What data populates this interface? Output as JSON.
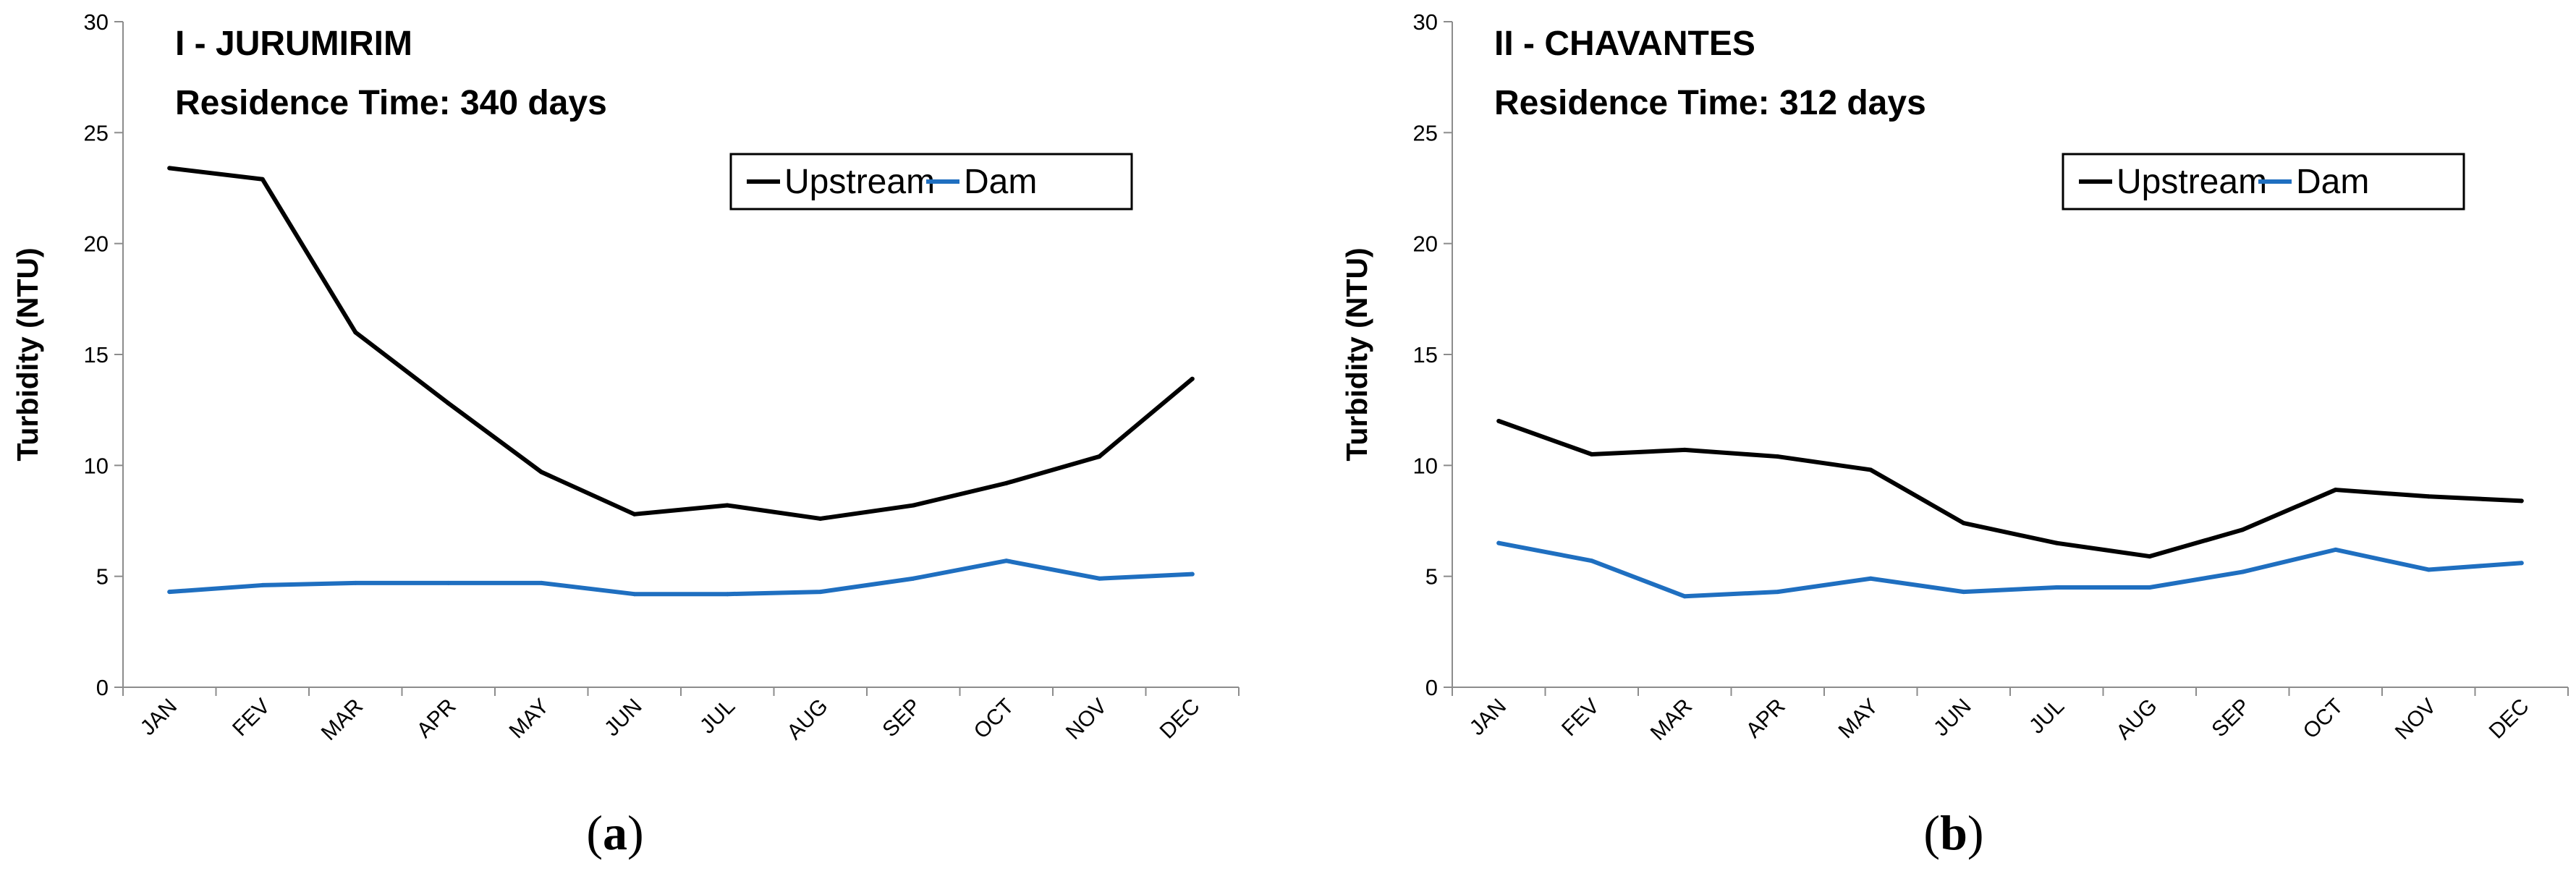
{
  "chart_data": [
    {
      "type": "line",
      "panel": "(a)",
      "panel_letter": "a",
      "annotation_line1": "I - JURUMIRIM",
      "annotation_line2": "Residence Time: 340 days",
      "xlabel": "",
      "ylabel": "Turbidity (NTU)",
      "ylim": [
        0,
        30
      ],
      "yticks": [
        0,
        5,
        10,
        15,
        20,
        25,
        30
      ],
      "categories": [
        "JAN",
        "FEV",
        "MAR",
        "APR",
        "MAY",
        "JUN",
        "JUL",
        "AUG",
        "SEP",
        "OCT",
        "NOV",
        "DEC"
      ],
      "legend_position": "top-right",
      "grid": false,
      "series": [
        {
          "name": "Upstream",
          "color": "#000000",
          "values": [
            23.4,
            22.9,
            16.0,
            12.8,
            9.7,
            7.8,
            8.2,
            7.6,
            8.2,
            9.2,
            10.4,
            13.9
          ]
        },
        {
          "name": "Dam",
          "color": "#1f6fc0",
          "values": [
            4.3,
            4.6,
            4.7,
            4.7,
            4.7,
            4.2,
            4.2,
            4.3,
            4.9,
            5.7,
            4.9,
            5.1
          ]
        }
      ]
    },
    {
      "type": "line",
      "panel": "(b)",
      "panel_letter": "b",
      "annotation_line1": "II - CHAVANTES",
      "annotation_line2": "Residence Time: 312 days",
      "xlabel": "",
      "ylabel": "Turbidity (NTU)",
      "ylim": [
        0,
        30
      ],
      "yticks": [
        0,
        5,
        10,
        15,
        20,
        25,
        30
      ],
      "categories": [
        "JAN",
        "FEV",
        "MAR",
        "APR",
        "MAY",
        "JUN",
        "JUL",
        "AUG",
        "SEP",
        "OCT",
        "NOV",
        "DEC"
      ],
      "legend_position": "top-right",
      "grid": false,
      "series": [
        {
          "name": "Upstream",
          "color": "#000000",
          "values": [
            12.0,
            10.5,
            10.7,
            10.4,
            9.8,
            7.4,
            6.5,
            5.9,
            7.1,
            8.9,
            8.6,
            8.4
          ]
        },
        {
          "name": "Dam",
          "color": "#1f6fc0",
          "values": [
            6.5,
            5.7,
            4.1,
            4.3,
            4.9,
            4.3,
            4.5,
            4.5,
            5.2,
            6.2,
            5.3,
            5.6
          ]
        }
      ]
    }
  ]
}
